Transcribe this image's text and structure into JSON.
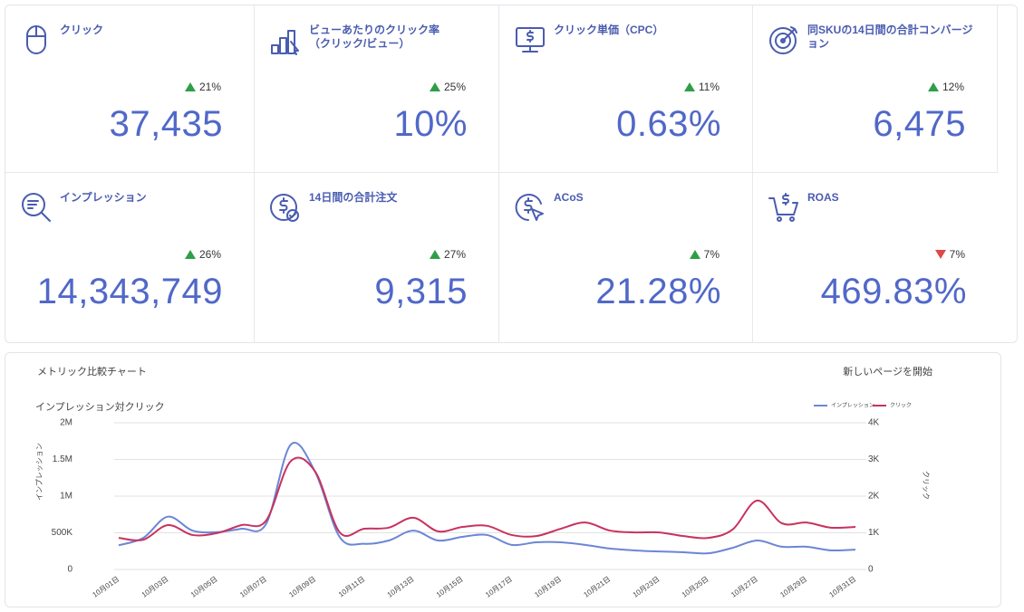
{
  "kpis": [
    {
      "title": "クリック",
      "change": "21%",
      "trend": "up",
      "value": "37,435"
    },
    {
      "title": "ビューあたりのクリック率（クリック/ビュー）",
      "change": "25%",
      "trend": "up",
      "value": "10%"
    },
    {
      "title": "クリック単価（CPC）",
      "change": "11%",
      "trend": "up",
      "value": "0.63%"
    },
    {
      "title": "同SKUの14日間の合計コンバージョン",
      "change": "12%",
      "trend": "up",
      "value": "6,475"
    },
    {
      "title": "インプレッション",
      "change": "26%",
      "trend": "up",
      "value": "14,343,749"
    },
    {
      "title": "14日間の合計注文",
      "change": "27%",
      "trend": "up",
      "value": "9,315"
    },
    {
      "title": "ACoS",
      "change": "7%",
      "trend": "up",
      "value": "21.28%"
    },
    {
      "title": "ROAS",
      "change": "7%",
      "trend": "down",
      "value": "469.83%"
    }
  ],
  "chart_data": {
    "type": "line",
    "panel_title": "メトリック比較チャート",
    "action": "新しいページを開始",
    "title": "インプレッション対クリック",
    "ylabel": "インプレッション",
    "y2label": "クリック",
    "categories": [
      "10月01日",
      null,
      "10月03日",
      null,
      "10月05日",
      null,
      "10月07日",
      null,
      "10月09日",
      null,
      "10月11日",
      null,
      "10月13日",
      null,
      "10月15日",
      null,
      "10月17日",
      null,
      "10月19日",
      null,
      "10月21日",
      null,
      "10月23日",
      null,
      "10月25日",
      null,
      "10月27日",
      null,
      "10月29日",
      null,
      "10月31日"
    ],
    "series": [
      {
        "name": "インプレッション",
        "color": "#6b86d6",
        "values": [
          330000,
          430000,
          720000,
          530000,
          510000,
          555000,
          620000,
          1700000,
          1330000,
          440000,
          350000,
          395000,
          530000,
          395000,
          445000,
          470000,
          335000,
          370000,
          370000,
          335000,
          285000,
          260000,
          245000,
          235000,
          220000,
          295000,
          395000,
          310000,
          310000,
          260000,
          270000
        ]
      },
      {
        "name": "クリック",
        "color": "#c8325e",
        "axis": "y2",
        "values": [
          860,
          810,
          1210,
          940,
          990,
          1210,
          1330,
          2950,
          2670,
          1010,
          1110,
          1140,
          1410,
          1040,
          1160,
          1190,
          940,
          910,
          1110,
          1280,
          1060,
          1010,
          1010,
          910,
          860,
          1090,
          1880,
          1260,
          1280,
          1140,
          1160
        ]
      }
    ],
    "ylim": [
      0,
      2000000
    ],
    "yticks": [
      0,
      {
        "value": 500000,
        "label": "500K"
      },
      {
        "value": 1000000,
        "label": "1M"
      },
      {
        "value": 1500000,
        "label": "1.5M"
      },
      {
        "value": 2000000,
        "label": "2M"
      }
    ],
    "y2lim": [
      0,
      4000
    ],
    "y2ticks": [
      0,
      {
        "value": 1000,
        "label": "1K"
      },
      {
        "value": 2000,
        "label": "2K"
      },
      {
        "value": 3000,
        "label": "3K"
      },
      {
        "value": 4000,
        "label": "4K"
      }
    ],
    "grid": true,
    "legend": "top-right"
  }
}
